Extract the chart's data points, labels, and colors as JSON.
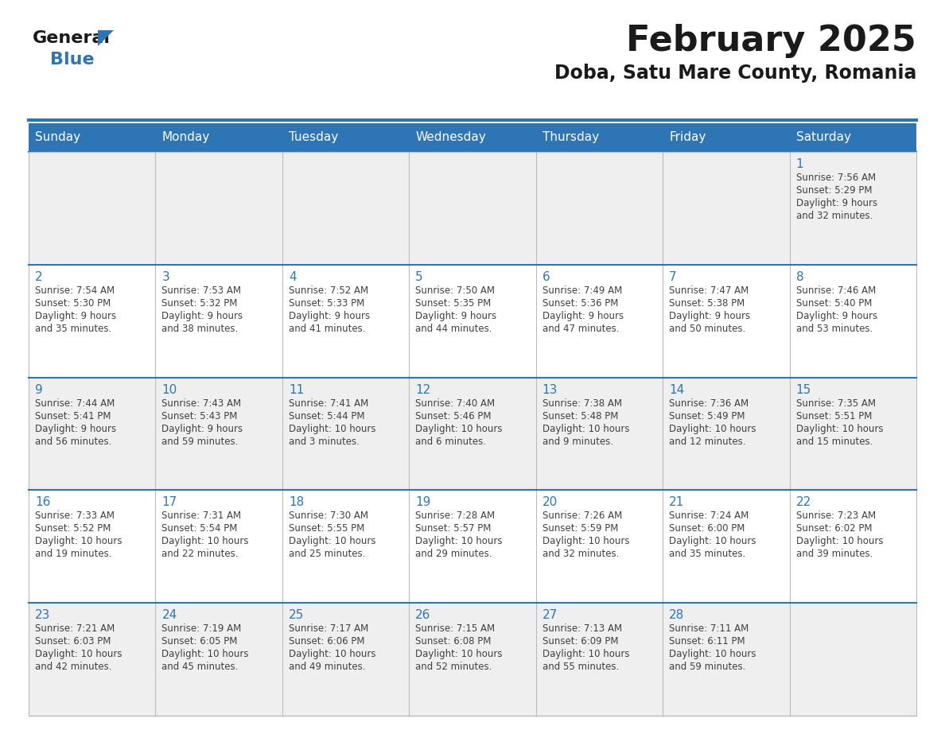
{
  "title": "February 2025",
  "subtitle": "Doba, Satu Mare County, Romania",
  "header_bg": "#2E75B6",
  "header_text_color": "#FFFFFF",
  "day_number_color": "#2E75B6",
  "text_color": "#404040",
  "separator_color": "#2E75B6",
  "grid_color": "#BBBBBB",
  "cell_bg_odd": "#EFEFEF",
  "cell_bg_even": "#FFFFFF",
  "days_of_week": [
    "Sunday",
    "Monday",
    "Tuesday",
    "Wednesday",
    "Thursday",
    "Friday",
    "Saturday"
  ],
  "weeks": [
    [
      {
        "day": null,
        "info": null
      },
      {
        "day": null,
        "info": null
      },
      {
        "day": null,
        "info": null
      },
      {
        "day": null,
        "info": null
      },
      {
        "day": null,
        "info": null
      },
      {
        "day": null,
        "info": null
      },
      {
        "day": 1,
        "info": "Sunrise: 7:56 AM\nSunset: 5:29 PM\nDaylight: 9 hours\nand 32 minutes."
      }
    ],
    [
      {
        "day": 2,
        "info": "Sunrise: 7:54 AM\nSunset: 5:30 PM\nDaylight: 9 hours\nand 35 minutes."
      },
      {
        "day": 3,
        "info": "Sunrise: 7:53 AM\nSunset: 5:32 PM\nDaylight: 9 hours\nand 38 minutes."
      },
      {
        "day": 4,
        "info": "Sunrise: 7:52 AM\nSunset: 5:33 PM\nDaylight: 9 hours\nand 41 minutes."
      },
      {
        "day": 5,
        "info": "Sunrise: 7:50 AM\nSunset: 5:35 PM\nDaylight: 9 hours\nand 44 minutes."
      },
      {
        "day": 6,
        "info": "Sunrise: 7:49 AM\nSunset: 5:36 PM\nDaylight: 9 hours\nand 47 minutes."
      },
      {
        "day": 7,
        "info": "Sunrise: 7:47 AM\nSunset: 5:38 PM\nDaylight: 9 hours\nand 50 minutes."
      },
      {
        "day": 8,
        "info": "Sunrise: 7:46 AM\nSunset: 5:40 PM\nDaylight: 9 hours\nand 53 minutes."
      }
    ],
    [
      {
        "day": 9,
        "info": "Sunrise: 7:44 AM\nSunset: 5:41 PM\nDaylight: 9 hours\nand 56 minutes."
      },
      {
        "day": 10,
        "info": "Sunrise: 7:43 AM\nSunset: 5:43 PM\nDaylight: 9 hours\nand 59 minutes."
      },
      {
        "day": 11,
        "info": "Sunrise: 7:41 AM\nSunset: 5:44 PM\nDaylight: 10 hours\nand 3 minutes."
      },
      {
        "day": 12,
        "info": "Sunrise: 7:40 AM\nSunset: 5:46 PM\nDaylight: 10 hours\nand 6 minutes."
      },
      {
        "day": 13,
        "info": "Sunrise: 7:38 AM\nSunset: 5:48 PM\nDaylight: 10 hours\nand 9 minutes."
      },
      {
        "day": 14,
        "info": "Sunrise: 7:36 AM\nSunset: 5:49 PM\nDaylight: 10 hours\nand 12 minutes."
      },
      {
        "day": 15,
        "info": "Sunrise: 7:35 AM\nSunset: 5:51 PM\nDaylight: 10 hours\nand 15 minutes."
      }
    ],
    [
      {
        "day": 16,
        "info": "Sunrise: 7:33 AM\nSunset: 5:52 PM\nDaylight: 10 hours\nand 19 minutes."
      },
      {
        "day": 17,
        "info": "Sunrise: 7:31 AM\nSunset: 5:54 PM\nDaylight: 10 hours\nand 22 minutes."
      },
      {
        "day": 18,
        "info": "Sunrise: 7:30 AM\nSunset: 5:55 PM\nDaylight: 10 hours\nand 25 minutes."
      },
      {
        "day": 19,
        "info": "Sunrise: 7:28 AM\nSunset: 5:57 PM\nDaylight: 10 hours\nand 29 minutes."
      },
      {
        "day": 20,
        "info": "Sunrise: 7:26 AM\nSunset: 5:59 PM\nDaylight: 10 hours\nand 32 minutes."
      },
      {
        "day": 21,
        "info": "Sunrise: 7:24 AM\nSunset: 6:00 PM\nDaylight: 10 hours\nand 35 minutes."
      },
      {
        "day": 22,
        "info": "Sunrise: 7:23 AM\nSunset: 6:02 PM\nDaylight: 10 hours\nand 39 minutes."
      }
    ],
    [
      {
        "day": 23,
        "info": "Sunrise: 7:21 AM\nSunset: 6:03 PM\nDaylight: 10 hours\nand 42 minutes."
      },
      {
        "day": 24,
        "info": "Sunrise: 7:19 AM\nSunset: 6:05 PM\nDaylight: 10 hours\nand 45 minutes."
      },
      {
        "day": 25,
        "info": "Sunrise: 7:17 AM\nSunset: 6:06 PM\nDaylight: 10 hours\nand 49 minutes."
      },
      {
        "day": 26,
        "info": "Sunrise: 7:15 AM\nSunset: 6:08 PM\nDaylight: 10 hours\nand 52 minutes."
      },
      {
        "day": 27,
        "info": "Sunrise: 7:13 AM\nSunset: 6:09 PM\nDaylight: 10 hours\nand 55 minutes."
      },
      {
        "day": 28,
        "info": "Sunrise: 7:11 AM\nSunset: 6:11 PM\nDaylight: 10 hours\nand 59 minutes."
      },
      {
        "day": null,
        "info": null
      }
    ]
  ],
  "logo_general_color": "#1a1a1a",
  "logo_blue_color": "#2E75B6",
  "logo_triangle_color": "#2E75B6"
}
